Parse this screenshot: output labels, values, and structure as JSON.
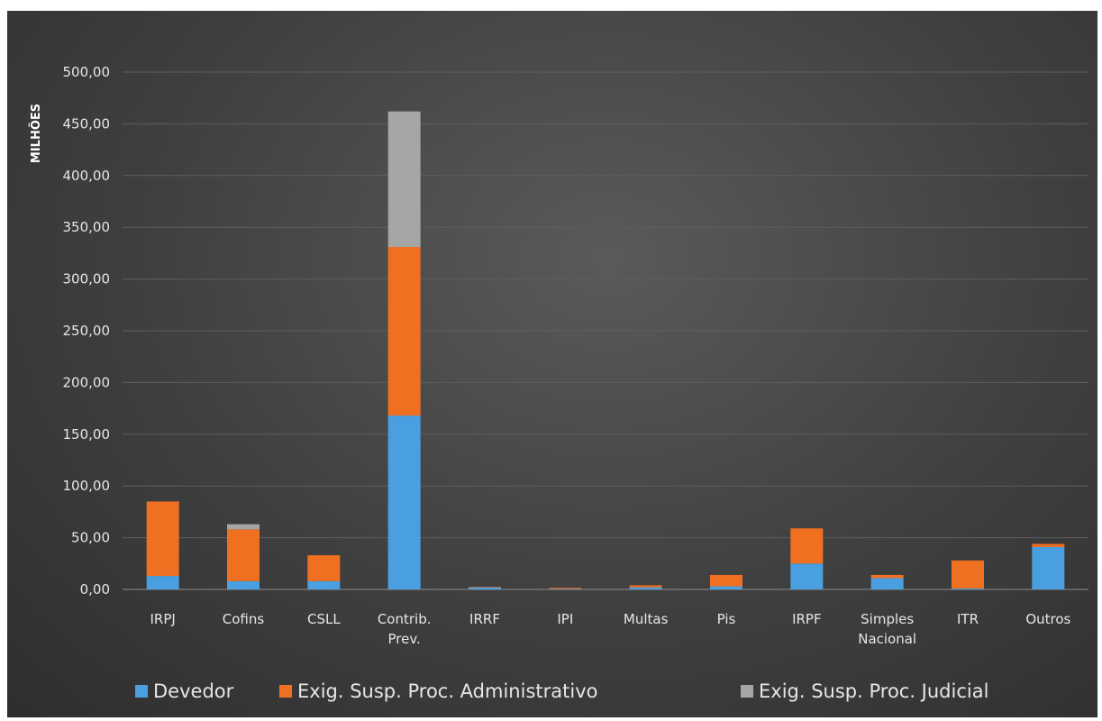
{
  "chart_data": {
    "type": "bar",
    "stacked": true,
    "title": "",
    "xlabel": "",
    "ylabel": "MILHÕES",
    "ylim": [
      0,
      500
    ],
    "yticks": [
      "0,00",
      "50,00",
      "100,00",
      "150,00",
      "200,00",
      "250,00",
      "300,00",
      "350,00",
      "400,00",
      "450,00",
      "500,00"
    ],
    "grid": true,
    "legend_position": "bottom",
    "categories": [
      "IRPJ",
      "Cofins",
      "CSLL",
      "Contrib.\nPrev.",
      "IRRF",
      "IPI",
      "Multas",
      "Pis",
      "IRPF",
      "Simples\nNacional",
      "ITR",
      "Outros"
    ],
    "series": [
      {
        "name": "Devedor",
        "color": "#4a9fe0",
        "values": [
          13,
          8,
          8,
          168,
          2,
          0.5,
          2,
          3,
          25,
          11,
          1,
          41
        ]
      },
      {
        "name": "Exig. Susp. Proc. Administrativo",
        "color": "#f07022",
        "values": [
          72,
          50,
          25,
          163,
          0.5,
          1,
          2,
          11,
          34,
          3,
          27,
          3
        ]
      },
      {
        "name": "Exig. Susp. Proc. Judicial",
        "color": "#a6a6a6",
        "values": [
          0,
          5,
          0,
          131,
          0,
          0,
          0,
          0,
          0,
          0,
          0,
          0
        ]
      }
    ]
  }
}
